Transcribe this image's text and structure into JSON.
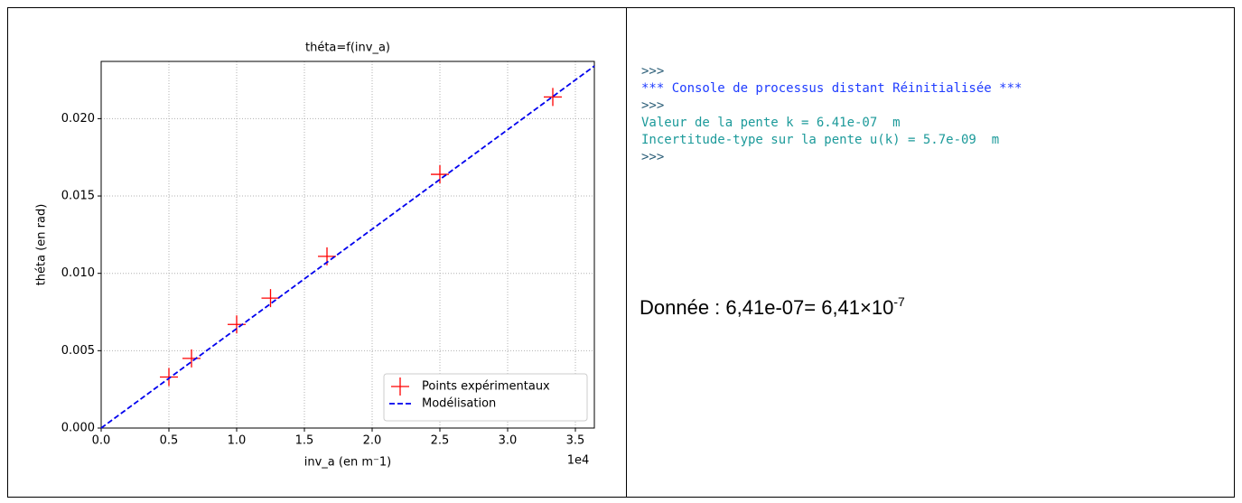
{
  "chart_data": {
    "type": "scatter",
    "title": "théta=f(inv_a)",
    "xlabel": "inv_a (en m⁻1)",
    "ylabel": "théta (en rad)",
    "x_offset_label": "1e4",
    "series": [
      {
        "name": "Points expérimentaux",
        "type": "scatter",
        "marker": "+",
        "color": "#ff0000",
        "x": [
          5000,
          6667,
          10000,
          12500,
          16667,
          25000,
          33333
        ],
        "values": [
          0.0033,
          0.0045,
          0.0067,
          0.0084,
          0.0111,
          0.0164,
          0.0214
        ]
      },
      {
        "name": "Modélisation",
        "type": "line",
        "style": "dashed",
        "color": "#0000ee",
        "x": [
          0,
          36400
        ],
        "values": [
          0,
          0.0234
        ]
      }
    ],
    "xlim": [
      0,
      36400
    ],
    "ylim": [
      0,
      0.0237
    ],
    "xticks": [
      {
        "value": 0,
        "label": "0.0"
      },
      {
        "value": 5000,
        "label": "0.5"
      },
      {
        "value": 10000,
        "label": "1.0"
      },
      {
        "value": 15000,
        "label": "1.5"
      },
      {
        "value": 20000,
        "label": "2.0"
      },
      {
        "value": 25000,
        "label": "2.5"
      },
      {
        "value": 30000,
        "label": "3.0"
      },
      {
        "value": 35000,
        "label": "3.5"
      }
    ],
    "yticks": [
      {
        "value": 0,
        "label": "0.000"
      },
      {
        "value": 0.005,
        "label": "0.005"
      },
      {
        "value": 0.01,
        "label": "0.010"
      },
      {
        "value": 0.015,
        "label": "0.015"
      },
      {
        "value": 0.02,
        "label": "0.020"
      }
    ],
    "grid": true,
    "legend": "lower right"
  },
  "console": {
    "lines": [
      {
        "text": ">>>",
        "color": "#2a5d77"
      },
      {
        "text": "*** Console de processus distant Réinitialisée ***",
        "color": "#1f3cff"
      },
      {
        "text": ">>>",
        "color": "#2a5d77"
      },
      {
        "text": "Valeur de la pente k = 6.41e-07  m",
        "color": "#1c9a9a"
      },
      {
        "text": "Incertitude-type sur la pente u(k) = 5.7e-09  m",
        "color": "#1c9a9a"
      },
      {
        "text": ">>>",
        "color": "#2a5d77"
      }
    ]
  },
  "note": {
    "text": "Donnée : 6,41e-07= 6,41×10",
    "exponent": "-7"
  }
}
